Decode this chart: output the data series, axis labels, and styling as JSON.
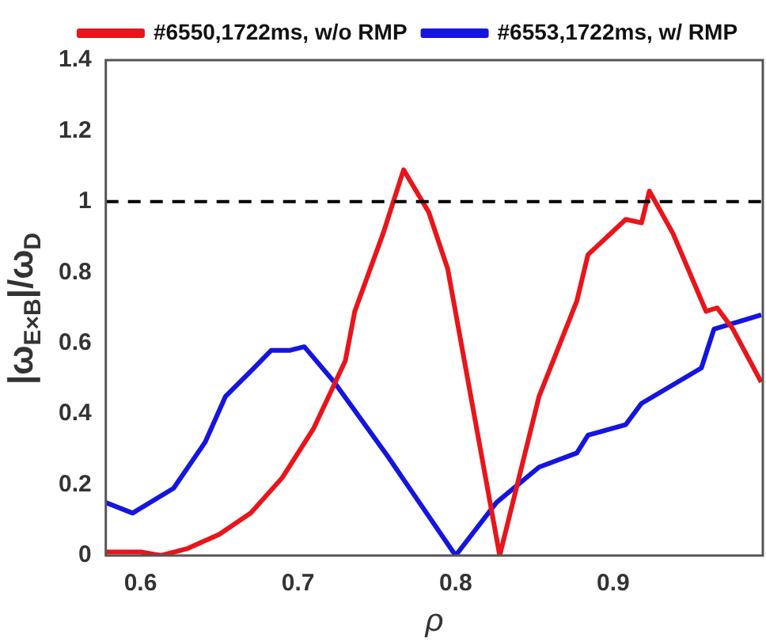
{
  "chart_data": {
    "type": "line",
    "xlabel": "ρ",
    "ylabel": "|ω$_{E×B}$|/ω$_{D}$",
    "xlim": [
      0.578,
      0.995
    ],
    "xticks": [
      0.6,
      0.7,
      0.8,
      0.9
    ],
    "ylim": [
      0,
      1.4
    ],
    "yticks": [
      0,
      0.2,
      0.4,
      0.6,
      0.8,
      1,
      1.2,
      1.4
    ],
    "grid": false,
    "legend": "top",
    "marker": "none",
    "line_style": "solid",
    "ref_lines": [
      {
        "axis": "y",
        "value": 1,
        "color": "#000000",
        "line_style": "dashed"
      }
    ],
    "series": [
      {
        "name": "#6550,1722ms, w/o RMP",
        "color": "#e8151b",
        "x": [
          0.578,
          0.6,
          0.613,
          0.63,
          0.65,
          0.67,
          0.69,
          0.71,
          0.73,
          0.736,
          0.754,
          0.767,
          0.783,
          0.795,
          0.828,
          0.853,
          0.877,
          0.884,
          0.908,
          0.918,
          0.923,
          0.938,
          0.959,
          0.966,
          0.976,
          0.994
        ],
        "values": [
          0.01,
          0.01,
          0,
          0.02,
          0.06,
          0.12,
          0.22,
          0.36,
          0.55,
          0.69,
          0.91,
          1.09,
          0.97,
          0.81,
          0,
          0.45,
          0.72,
          0.85,
          0.95,
          0.94,
          1.03,
          0.91,
          0.69,
          0.7,
          0.64,
          0.49
        ]
      },
      {
        "name": "#6553,1722ms, w/ RMP",
        "color": "#1515e0",
        "x": [
          0.578,
          0.595,
          0.621,
          0.641,
          0.654,
          0.672,
          0.683,
          0.695,
          0.704,
          0.723,
          0.757,
          0.8,
          0.826,
          0.853,
          0.877,
          0.884,
          0.908,
          0.918,
          0.956,
          0.964,
          0.994
        ],
        "values": [
          0.15,
          0.12,
          0.19,
          0.32,
          0.45,
          0.53,
          0.58,
          0.58,
          0.59,
          0.49,
          0.28,
          0,
          0.15,
          0.25,
          0.29,
          0.34,
          0.37,
          0.43,
          0.53,
          0.64,
          0.68
        ]
      }
    ]
  }
}
